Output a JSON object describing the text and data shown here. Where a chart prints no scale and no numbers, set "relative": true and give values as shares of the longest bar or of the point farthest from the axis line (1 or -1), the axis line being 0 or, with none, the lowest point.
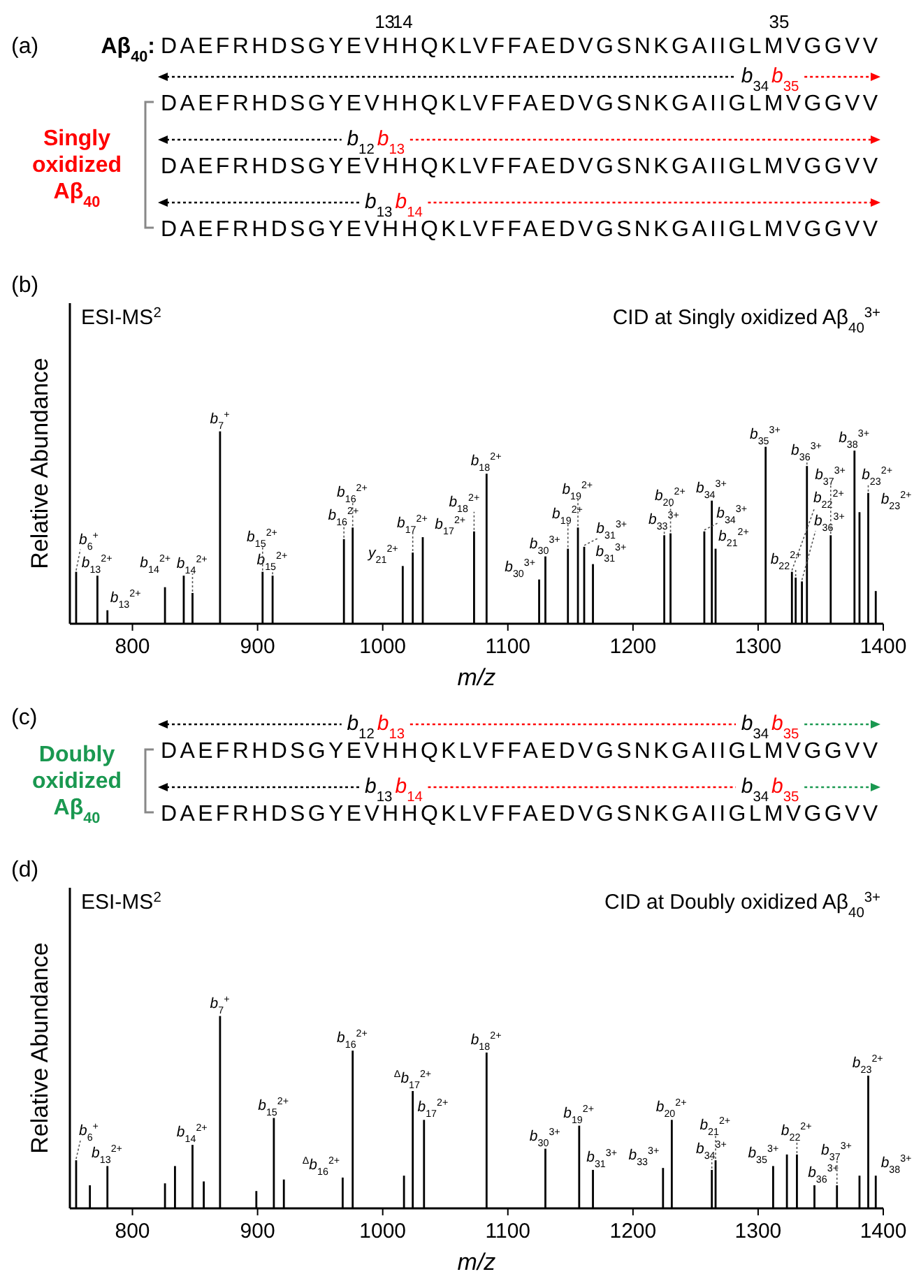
{
  "chart_data": [
    {
      "type": "other",
      "title": "Aβ$_{40}$: DAEFRHDSGYEVHHQKLVFFAEDVGSNKGAIIGLMVGGVV",
      "colors": [
        "#000000",
        "#ff0000"
      ],
      "annotations": [
        "(a)",
        "Singly oxidized Aβ$_{40}$",
        "13",
        "14",
        "35",
        "DAEFRHDSGYEVHHQKLVFFAEDVGSNKGAIIGLMVGGVV",
        "b$_{34}$",
        "b$_{35}$",
        "DAEFRHDSGYEVHHQKLVFFAEDVGSNKGAIIGLMVGGVV",
        "b$_{12}$",
        "b$_{13}$",
        "DAEFRHDSGYEVHHQKLVFFAEDVGSNKGAIIGLMVGGVV",
        "b$_{13}$",
        "b$_{14}$"
      ]
    },
    {
      "type": "bar",
      "relative": true,
      "color": "#000000",
      "xlim": [
        750,
        1400
      ],
      "xticks": [
        800,
        900,
        1000,
        1100,
        1200,
        1300,
        1400
      ],
      "xlabel": "m/z",
      "ylabel": "Relative Abundance",
      "x": [
        755,
        772,
        780,
        826,
        841,
        848,
        870,
        904,
        912,
        969,
        976,
        1016,
        1024,
        1032,
        1073,
        1083,
        1125,
        1130,
        1148,
        1156,
        1161,
        1168,
        1225,
        1230,
        1257,
        1263,
        1266,
        1306,
        1327,
        1330,
        1335,
        1339,
        1358,
        1377,
        1381,
        1388,
        1394
      ],
      "values": [
        0.27,
        0.25,
        0.07,
        0.19,
        0.25,
        0.16,
        1,
        0.27,
        0.25,
        0.44,
        0.5,
        0.3,
        0.37,
        0.45,
        0.48,
        0.78,
        0.23,
        0.35,
        0.39,
        0.5,
        0.4,
        0.31,
        0.46,
        0.47,
        0.48,
        0.64,
        0.39,
        0.92,
        0.27,
        0.24,
        0.22,
        0.82,
        0.46,
        0.9,
        0.58,
        0.68,
        0.17
      ],
      "annotations": [
        "(b)",
        "ESI-MS$^{2}$",
        "CID at Singly oxidized Aβ$_{40}$$^{3+}$",
        {
          "text": "b$_{6}$$^{+}$",
          "x": 755,
          "y": 0.27
        },
        {
          "text": "b$_{13}$$^{2+}$",
          "x": 772,
          "y": 0.25
        },
        {
          "text": "b$_{13}$$^{2+}$",
          "x": 780,
          "y": 0.07
        },
        {
          "text": "b$_{14}$$^{2+}$",
          "x": 841,
          "y": 0.25
        },
        {
          "text": "b$_{14}$$^{2+}$",
          "x": 848,
          "y": 0.16
        },
        {
          "text": "b$_{7}$$^{+}$",
          "x": 870,
          "y": 1
        },
        {
          "text": "b$_{15}$$^{2+}$",
          "x": 904,
          "y": 0.27
        },
        {
          "text": "b$_{15}$$^{2+}$",
          "x": 912,
          "y": 0.25
        },
        {
          "text": "b$_{16}$$^{2+}$",
          "x": 969,
          "y": 0.44
        },
        {
          "text": "b$_{16}$$^{2+}$",
          "x": 976,
          "y": 0.5
        },
        {
          "text": "y$_{21}$$^{2+}$",
          "x": 1016,
          "y": 0.3
        },
        {
          "text": "b$_{17}$$^{2+}$",
          "x": 1024,
          "y": 0.37
        },
        {
          "text": "b$_{17}$$^{2+}$",
          "x": 1032,
          "y": 0.45
        },
        {
          "text": "b$_{18}$$^{2+}$",
          "x": 1073,
          "y": 0.48
        },
        {
          "text": "b$_{18}$$^{2+}$",
          "x": 1083,
          "y": 0.78
        },
        {
          "text": "b$_{30}$$^{3+}$",
          "x": 1125,
          "y": 0.23
        },
        {
          "text": "b$_{30}$$^{3+}$",
          "x": 1130,
          "y": 0.35
        },
        {
          "text": "b$_{19}$$^{2+}$",
          "x": 1148,
          "y": 0.39
        },
        {
          "text": "b$_{19}$$^{2+}$",
          "x": 1156,
          "y": 0.5
        },
        {
          "text": "b$_{31}$$^{3+}$",
          "x": 1161,
          "y": 0.4
        },
        {
          "text": "b$_{31}$$^{3+}$",
          "x": 1168,
          "y": 0.31
        },
        {
          "text": "b$_{33}$$^{3+}$",
          "x": 1225,
          "y": 0.46
        },
        {
          "text": "b$_{20}$$^{2+}$",
          "x": 1230,
          "y": 0.47
        },
        {
          "text": "b$_{34}$$^{3+}$",
          "x": 1257,
          "y": 0.48
        },
        {
          "text": "b$_{34}$$^{3+}$",
          "x": 1263,
          "y": 0.64
        },
        {
          "text": "b$_{21}$$^{2+}$",
          "x": 1266,
          "y": 0.39
        },
        {
          "text": "b$_{35}$$^{3+}$",
          "x": 1306,
          "y": 0.92
        },
        {
          "text": "b$_{22}$$^{2+}$",
          "x": 1327,
          "y": 0.27
        },
        {
          "text": "b$_{22}$$^{2+}$",
          "x": 1330,
          "y": 0.24
        },
        {
          "text": "b$_{36}$$^{3+}$",
          "x": 1335,
          "y": 0.22
        },
        {
          "text": "b$_{36}$$^{3+}$",
          "x": 1339,
          "y": 0.82
        },
        {
          "text": "b$_{37}$$^{3+}$",
          "x": 1358,
          "y": 0.46
        },
        {
          "text": "b$_{38}$$^{3+}$",
          "x": 1377,
          "y": 0.9
        },
        {
          "text": "b$_{23}$$^{2+}$",
          "x": 1381,
          "y": 0.58
        },
        {
          "text": "b$_{23}$$^{2+}$",
          "x": 1388,
          "y": 0.68
        }
      ]
    },
    {
      "type": "other",
      "colors": [
        "#000000",
        "#ff0000",
        "#1a9850"
      ],
      "annotations": [
        "(c)",
        "Doubly oxidized Aβ$_{40}$",
        "DAEFRHDSGYEVHHQKLVFFAEDVGSNKGAIIGLMVGGVV",
        "b$_{12}$",
        "b$_{13}$",
        "b$_{34}$",
        "b$_{35}$",
        "DAEFRHDSGYEVHHQKLVFFAEDVGSNKGAIIGLMVGGVV",
        "b$_{13}$",
        "b$_{14}$",
        "b$_{34}$",
        "b$_{35}$"
      ]
    },
    {
      "type": "bar",
      "relative": true,
      "color": "#000000",
      "xlim": [
        750,
        1400
      ],
      "xticks": [
        800,
        900,
        1000,
        1100,
        1200,
        1300,
        1400
      ],
      "xlabel": "m/z",
      "ylabel": "Relative Abundance",
      "x": [
        755,
        766,
        780,
        826,
        834,
        848,
        857,
        870,
        899,
        913,
        921,
        968,
        976,
        1017,
        1024,
        1033,
        1083,
        1130,
        1157,
        1168,
        1224,
        1231,
        1263,
        1266,
        1312,
        1323,
        1331,
        1345,
        1363,
        1381,
        1388,
        1394
      ],
      "values": [
        0.25,
        0.12,
        0.22,
        0.13,
        0.22,
        0.33,
        0.14,
        1,
        0.09,
        0.47,
        0.15,
        0.16,
        0.82,
        0.17,
        0.61,
        0.46,
        0.81,
        0.31,
        0.43,
        0.2,
        0.21,
        0.46,
        0.2,
        0.25,
        0.22,
        0.28,
        0.28,
        0.12,
        0.12,
        0.17,
        0.69,
        0.17
      ],
      "annotations": [
        "(d)",
        "ESI-MS$^{2}$",
        "CID at Doubly oxidized Aβ$_{40}$$^{3+}$",
        {
          "text": "b$_{6}$$^{+}$",
          "x": 755,
          "y": 0.25
        },
        {
          "text": "b$_{13}$$^{2+}$",
          "x": 780,
          "y": 0.22
        },
        {
          "text": "b$_{14}$$^{2+}$",
          "x": 848,
          "y": 0.33
        },
        {
          "text": "b$_{7}$$^{+}$",
          "x": 870,
          "y": 1
        },
        {
          "text": "b$_{15}$$^{2+}$",
          "x": 913,
          "y": 0.47
        },
        {
          "text": "$^{Δ}$b$_{16}$$^{2+}$",
          "x": 968,
          "y": 0.16
        },
        {
          "text": "b$_{16}$$^{2+}$",
          "x": 976,
          "y": 0.82
        },
        {
          "text": "$^{Δ}$b$_{17}$$^{2+}$",
          "x": 1024,
          "y": 0.61
        },
        {
          "text": "b$_{17}$$^{2+}$",
          "x": 1033,
          "y": 0.46
        },
        {
          "text": "b$_{18}$$^{2+}$",
          "x": 1083,
          "y": 0.81
        },
        {
          "text": "b$_{30}$$^{3+}$",
          "x": 1130,
          "y": 0.31
        },
        {
          "text": "b$_{19}$$^{2+}$",
          "x": 1157,
          "y": 0.43
        },
        {
          "text": "b$_{31}$$^{3+}$",
          "x": 1168,
          "y": 0.2
        },
        {
          "text": "b$_{33}$$^{3+}$",
          "x": 1224,
          "y": 0.21
        },
        {
          "text": "b$_{20}$$^{2+}$",
          "x": 1231,
          "y": 0.46
        },
        {
          "text": "b$_{34}$$^{3+}$",
          "x": 1263,
          "y": 0.2
        },
        {
          "text": "b$_{21}$$^{2+}$",
          "x": 1266,
          "y": 0.25
        },
        {
          "text": "b$_{35}$$^{3+}$",
          "x": 1312,
          "y": 0.22
        },
        {
          "text": "b$_{22}$$^{2+}$",
          "x": 1331,
          "y": 0.28
        },
        {
          "text": "b$_{36}$$^{3+}$",
          "x": 1345,
          "y": 0.12
        },
        {
          "text": "b$_{37}$$^{3+}$",
          "x": 1363,
          "y": 0.12
        },
        {
          "text": "b$_{38}$$^{3+}$",
          "x": 1381,
          "y": 0.17
        },
        {
          "text": "b$_{23}$$^{2+}$",
          "x": 1388,
          "y": 0.69
        }
      ]
    }
  ]
}
